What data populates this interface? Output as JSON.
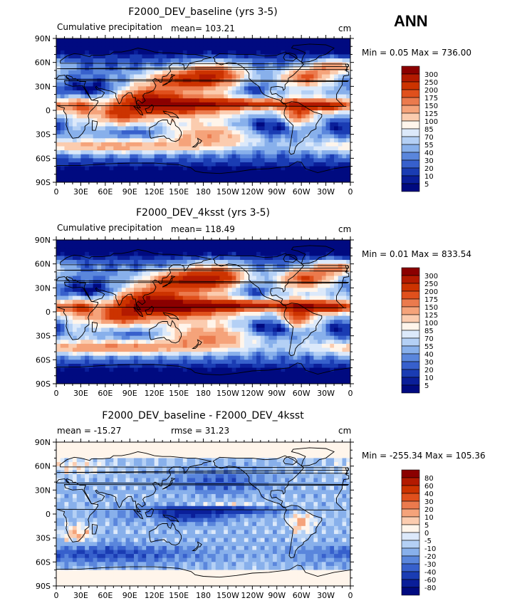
{
  "season": "ANN",
  "panels": [
    {
      "id": "baseline",
      "title": "F2000_DEV_baseline (yrs 3-5)",
      "left_label": "Cumulative precipitation",
      "mean_label": "mean= 103.21",
      "units": "cm",
      "minmax_label": "Min =    0.05  Max =  736.00",
      "colorbar": {
        "levels": [
          "300",
          "250",
          "200",
          "175",
          "150",
          "125",
          "100",
          "85",
          "70",
          "55",
          "40",
          "30",
          "20",
          "10",
          "5"
        ],
        "colors": [
          "#8b0000",
          "#b31a00",
          "#cc3300",
          "#e0501c",
          "#eb7a4d",
          "#f5a37a",
          "#fbccaf",
          "#fff5eb",
          "#dce9fa",
          "#b4d0f5",
          "#88b0eb",
          "#5a86dc",
          "#3760cc",
          "#1a3cb3",
          "#0a1e99",
          "#000a80"
        ]
      }
    },
    {
      "id": "4ksst",
      "title": "F2000_DEV_4ksst (yrs 3-5)",
      "left_label": "Cumulative precipitation",
      "mean_label": "mean= 118.49",
      "units": "cm",
      "minmax_label": "Min =    0.01  Max =  833.54",
      "colorbar": {
        "levels": [
          "300",
          "250",
          "200",
          "175",
          "150",
          "125",
          "100",
          "85",
          "70",
          "55",
          "40",
          "30",
          "20",
          "10",
          "5"
        ],
        "colors": [
          "#8b0000",
          "#b31a00",
          "#cc3300",
          "#e0501c",
          "#eb7a4d",
          "#f5a37a",
          "#fbccaf",
          "#fff5eb",
          "#dce9fa",
          "#b4d0f5",
          "#88b0eb",
          "#5a86dc",
          "#3760cc",
          "#1a3cb3",
          "#0a1e99",
          "#000a80"
        ]
      }
    },
    {
      "id": "diff",
      "title": "F2000_DEV_baseline - F2000_DEV_4ksst",
      "left_label": "mean =  -15.27",
      "mean_label": "rmse =   31.23",
      "units": "cm",
      "minmax_label": "Min = -255.34  Max =  105.36",
      "colorbar": {
        "levels": [
          "80",
          "60",
          "40",
          "30",
          "20",
          "10",
          "5",
          "0",
          "-5",
          "-10",
          "-20",
          "-30",
          "-40",
          "-60",
          "-80"
        ],
        "colors": [
          "#8b0000",
          "#b31a00",
          "#cc3300",
          "#e0501c",
          "#eb7a4d",
          "#f5a37a",
          "#fbccaf",
          "#fff5eb",
          "#dce9fa",
          "#b4d0f5",
          "#88b0eb",
          "#5a86dc",
          "#3760cc",
          "#1a3cb3",
          "#0a1e99",
          "#000a80"
        ]
      }
    }
  ],
  "chart_data": [
    {
      "type": "heatmap",
      "title": "F2000_DEV_baseline (yrs 3-5)",
      "variable": "Cumulative precipitation",
      "units": "cm",
      "mean": 103.21,
      "min": 0.05,
      "max": 736.0,
      "x_ticks": [
        "0",
        "30E",
        "60E",
        "90E",
        "120E",
        "150E",
        "180",
        "150W",
        "120W",
        "90W",
        "60W",
        "30W",
        "0"
      ],
      "y_ticks": [
        "90N",
        "60N",
        "30N",
        "0",
        "30S",
        "60S",
        "90S"
      ],
      "xlim": [
        0,
        360
      ],
      "ylim": [
        -90,
        90
      ],
      "contour_levels": [
        5,
        10,
        20,
        30,
        40,
        55,
        70,
        85,
        100,
        125,
        150,
        175,
        200,
        250,
        300
      ]
    },
    {
      "type": "heatmap",
      "title": "F2000_DEV_4ksst (yrs 3-5)",
      "variable": "Cumulative precipitation",
      "units": "cm",
      "mean": 118.49,
      "min": 0.01,
      "max": 833.54,
      "x_ticks": [
        "0",
        "30E",
        "60E",
        "90E",
        "120E",
        "150E",
        "180",
        "150W",
        "120W",
        "90W",
        "60W",
        "30W",
        "0"
      ],
      "y_ticks": [
        "90N",
        "60N",
        "30N",
        "0",
        "30S",
        "60S",
        "90S"
      ],
      "xlim": [
        0,
        360
      ],
      "ylim": [
        -90,
        90
      ],
      "contour_levels": [
        5,
        10,
        20,
        30,
        40,
        55,
        70,
        85,
        100,
        125,
        150,
        175,
        200,
        250,
        300
      ]
    },
    {
      "type": "heatmap",
      "title": "F2000_DEV_baseline - F2000_DEV_4ksst",
      "units": "cm",
      "mean": -15.27,
      "rmse": 31.23,
      "min": -255.34,
      "max": 105.36,
      "x_ticks": [
        "0",
        "30E",
        "60E",
        "90E",
        "120E",
        "150E",
        "180",
        "150W",
        "120W",
        "90W",
        "60W",
        "30W",
        "0"
      ],
      "y_ticks": [
        "90N",
        "60N",
        "30N",
        "0",
        "30S",
        "60S",
        "90S"
      ],
      "xlim": [
        0,
        360
      ],
      "ylim": [
        -90,
        90
      ],
      "contour_levels": [
        -80,
        -60,
        -40,
        -30,
        -20,
        -10,
        -5,
        0,
        5,
        10,
        20,
        30,
        40,
        60,
        80
      ]
    }
  ]
}
